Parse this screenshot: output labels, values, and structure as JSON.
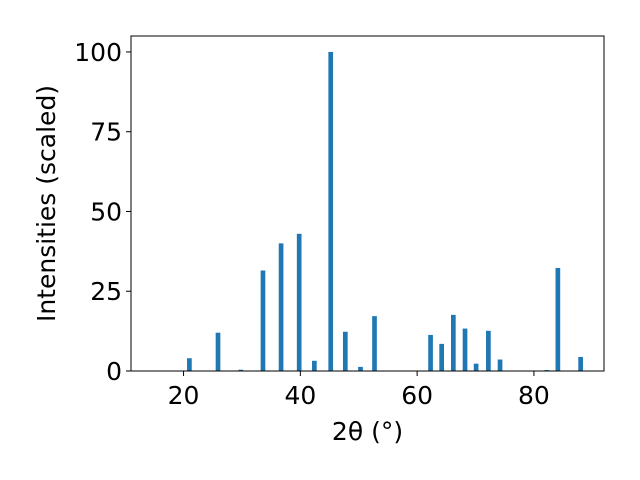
{
  "chart_data": {
    "type": "bar",
    "xlabel": "2θ (°)",
    "ylabel": "Intensities (scaled)",
    "xlim": [
      11,
      92
    ],
    "ylim": [
      0,
      105
    ],
    "xticks": [
      20,
      40,
      60,
      80
    ],
    "yticks": [
      0,
      25,
      50,
      75,
      100
    ],
    "grid": false,
    "bar_color": "#1f77b4",
    "bar_width": 0.8,
    "series": [
      {
        "x": [
          21.0,
          25.9,
          29.8,
          33.6,
          36.7,
          39.8,
          42.4,
          45.2,
          47.7,
          50.3,
          52.7,
          62.3,
          64.2,
          66.2,
          68.2,
          70.1,
          72.2,
          74.2,
          82.2,
          84.1,
          88.0
        ],
        "values": [
          4.0,
          12.0,
          0.4,
          31.5,
          40.0,
          43.0,
          3.2,
          100.0,
          12.3,
          1.3,
          17.2,
          11.3,
          8.5,
          17.6,
          13.3,
          2.3,
          12.6,
          3.6,
          0.3,
          32.3,
          4.4
        ]
      }
    ]
  }
}
